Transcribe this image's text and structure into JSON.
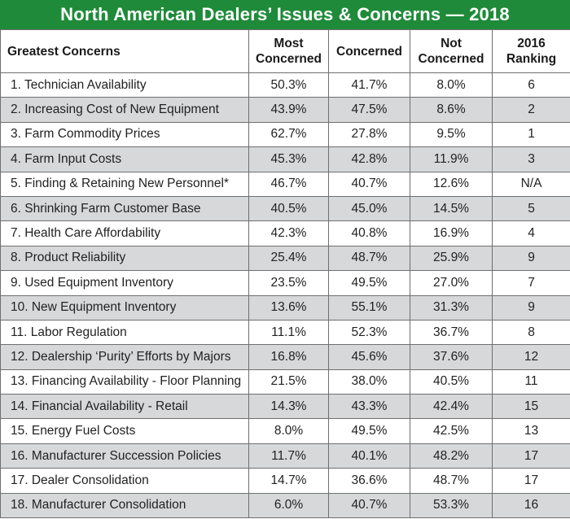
{
  "title": "North American Dealers’ Issues & Concerns — 2018",
  "headers": {
    "concern": "Greatest Concerns",
    "most_1": "Most",
    "most_2": "Concerned",
    "concerned": "Concerned",
    "not_1": "Not",
    "not_2": "Concerned",
    "rank_1": "2016",
    "rank_2": "Ranking"
  },
  "rows": [
    {
      "label": "1. Technician Availability",
      "most": "50.3%",
      "concerned": "41.7%",
      "not": "8.0%",
      "rank": "6"
    },
    {
      "label": "2. Increasing Cost of New Equipment",
      "most": "43.9%",
      "concerned": "47.5%",
      "not": "8.6%",
      "rank": "2"
    },
    {
      "label": "3. Farm Commodity Prices",
      "most": "62.7%",
      "concerned": "27.8%",
      "not": "9.5%",
      "rank": "1"
    },
    {
      "label": "4. Farm Input Costs",
      "most": "45.3%",
      "concerned": "42.8%",
      "not": "11.9%",
      "rank": "3"
    },
    {
      "label": "5. Finding & Retaining New Personnel*",
      "most": "46.7%",
      "concerned": "40.7%",
      "not": "12.6%",
      "rank": "N/A"
    },
    {
      "label": "6. Shrinking Farm Customer Base",
      "most": "40.5%",
      "concerned": "45.0%",
      "not": "14.5%",
      "rank": "5"
    },
    {
      "label": "7. Health Care Affordability",
      "most": "42.3%",
      "concerned": "40.8%",
      "not": "16.9%",
      "rank": "4"
    },
    {
      "label": "8. Product Reliability",
      "most": "25.4%",
      "concerned": "48.7%",
      "not": "25.9%",
      "rank": "9"
    },
    {
      "label": "9. Used Equipment Inventory",
      "most": "23.5%",
      "concerned": "49.5%",
      "not": "27.0%",
      "rank": "7"
    },
    {
      "label": "10. New Equipment Inventory",
      "most": "13.6%",
      "concerned": "55.1%",
      "not": "31.3%",
      "rank": "9"
    },
    {
      "label": "11. Labor Regulation",
      "most": "11.1%",
      "concerned": "52.3%",
      "not": "36.7%",
      "rank": "8"
    },
    {
      "label": "12. Dealership ‘Purity’ Efforts by Majors",
      "most": "16.8%",
      "concerned": "45.6%",
      "not": "37.6%",
      "rank": "12"
    },
    {
      "label": "13. Financing Availability - Floor Planning",
      "most": "21.5%",
      "concerned": "38.0%",
      "not": "40.5%",
      "rank": "11"
    },
    {
      "label": "14. Financial Availability - Retail",
      "most": "14.3%",
      "concerned": "43.3%",
      "not": "42.4%",
      "rank": "15"
    },
    {
      "label": "15. Energy Fuel Costs",
      "most": "8.0%",
      "concerned": "49.5%",
      "not": "42.5%",
      "rank": "13"
    },
    {
      "label": "16. Manufacturer Succession Policies",
      "most": "11.7%",
      "concerned": "40.1%",
      "not": "48.2%",
      "rank": "17"
    },
    {
      "label": "17. Dealer Consolidation",
      "most": "14.7%",
      "concerned": "36.6%",
      "not": "48.7%",
      "rank": "17"
    },
    {
      "label": "18. Manufacturer Consolidation",
      "most": "6.0%",
      "concerned": "40.7%",
      "not": "53.3%",
      "rank": "16"
    }
  ],
  "colors": {
    "title_bg": "#1f8b3a",
    "shade_row": "#d7d8da",
    "grid": "#6f6f6f"
  }
}
